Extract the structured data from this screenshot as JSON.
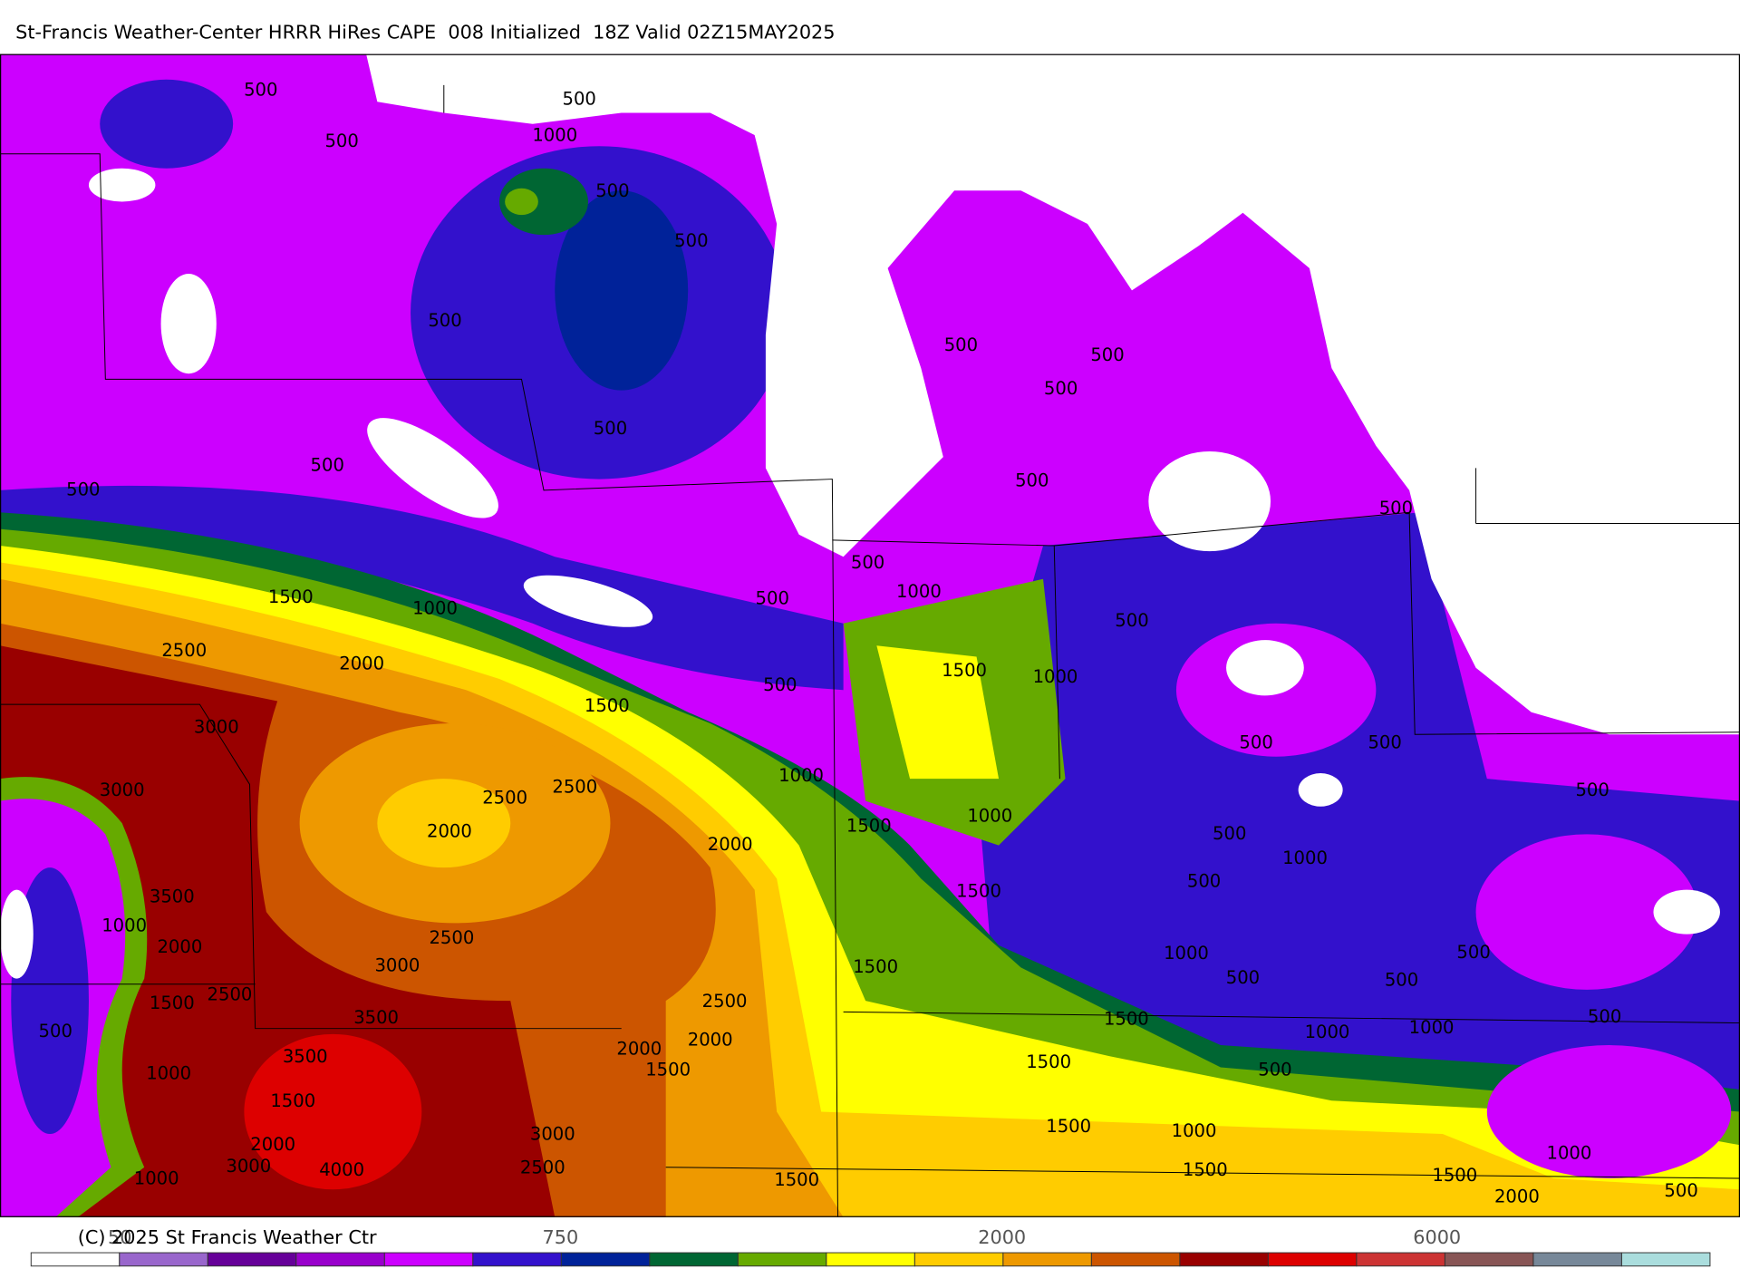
{
  "header": {
    "title": "St-Francis Weather-Center HRRR HiRes CAPE  008 Initialized  18Z Valid 02Z15MAY2025"
  },
  "contour_labels": [
    500,
    500,
    500,
    1000,
    500,
    500,
    500,
    500,
    500,
    500,
    500,
    500,
    500,
    500,
    500,
    500,
    1000,
    500,
    1500,
    1000,
    2500,
    2000,
    1500,
    500,
    1500,
    1000,
    500,
    3000,
    3000,
    2500,
    2500,
    1000,
    2000,
    1500,
    1000,
    2000,
    500,
    500,
    500,
    3500,
    1000,
    2000,
    2500,
    3000,
    1500,
    500,
    1000,
    500,
    1500,
    1000,
    500,
    500,
    500,
    2500,
    1500,
    3500,
    2500,
    1500,
    1000,
    1000,
    500,
    500,
    2000,
    2000,
    3500,
    1500,
    1500,
    500,
    1000,
    1500,
    3000,
    1500,
    1000,
    2000,
    3000,
    4000,
    2500,
    1500,
    1000,
    1500,
    1500,
    1000,
    2000,
    500
  ],
  "colorbar": {
    "colors": [
      "#ffffff",
      "#9966cc",
      "#660099",
      "#9900cc",
      "#cc00ff",
      "#3311cc",
      "#002299",
      "#006633",
      "#66aa00",
      "#ffff00",
      "#ffcc00",
      "#ee9900",
      "#cc5500",
      "#990000",
      "#dd0000",
      "#cc3333",
      "#885555",
      "#778899",
      "#aadddd"
    ],
    "labels": [
      "50",
      "750",
      "2000",
      "6000"
    ]
  },
  "footer": {
    "copyright": "(C) 2025 St Francis Weather Ctr"
  }
}
